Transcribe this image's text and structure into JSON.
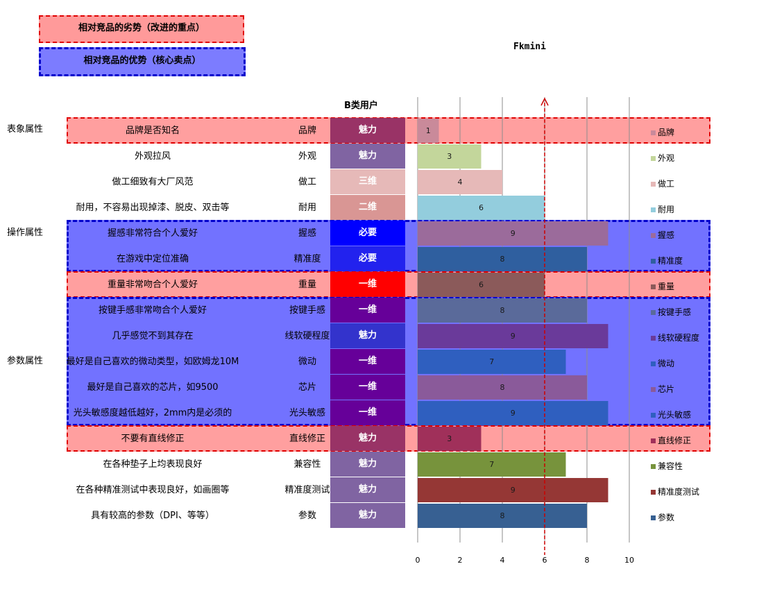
{
  "legend_boxes": {
    "weak": "相对竞品的劣势（改进的重点）",
    "strong": "相对竞品的优势（核心卖点）"
  },
  "user_group_header": "B类用户",
  "group_labels": {
    "appearance": "表象属性",
    "operation": "操作属性",
    "parameter": "参数属性"
  },
  "chart_data": {
    "type": "bar",
    "orientation": "horizontal",
    "title": "Fkmini",
    "xlim": [
      0,
      10
    ],
    "xticks": [
      0,
      2,
      4,
      6,
      8,
      10
    ],
    "reference_line_value": 6,
    "grid": true,
    "legend_position": "right",
    "categories": [
      "品牌",
      "外观",
      "做工",
      "耐用",
      "握感",
      "精准度",
      "重量",
      "按键手感",
      "线软硬程度",
      "微动",
      "芯片",
      "光头敏感",
      "直线修正",
      "兼容性",
      "精准度测试",
      "参数"
    ],
    "descriptions": [
      "品牌是否知名",
      "外观拉风",
      "做工细致有大厂风范",
      "耐用，不容易出现掉漆、脱皮、双击等",
      "握感非常符合个人爱好",
      "在游戏中定位准确",
      "重量非常吻合个人爱好",
      "按键手感非常吻合个人爱好",
      "几乎感觉不到其存在",
      "最好是自己喜欢的微动类型，如欧姆龙10M",
      "最好是自己喜欢的芯片，如9500",
      "光头敏感度越低越好，2mm内是必须的",
      "不要有直线修正",
      "在各种垫子上均表现良好",
      "在各种精准测试中表现良好，如画圈等",
      "具有较高的参数（DPI、等等）"
    ],
    "kano": [
      "魅力",
      "魅力",
      "三维",
      "二维",
      "必要",
      "必要",
      "一维",
      "一维",
      "魅力",
      "一维",
      "一维",
      "一维",
      "魅力",
      "魅力",
      "魅力",
      "魅力"
    ],
    "values": [
      1,
      3,
      4,
      6,
      9,
      8,
      6,
      8,
      9,
      7,
      8,
      9,
      3,
      7,
      9,
      8
    ],
    "colors": [
      "#c98a9a",
      "#c3d69b",
      "#e6b9b8",
      "#93cddd",
      "#9b6b9b",
      "#2f5f9f",
      "#8b5a5a",
      "#5a6a9a",
      "#6a3a9a",
      "#2f5fbf",
      "#8a5a9a",
      "#2f5fbf",
      "#a0305a",
      "#77933c",
      "#953735",
      "#376092"
    ],
    "kano_colors": [
      "#993366",
      "#8064a2",
      "#e6b9b8",
      "#d99694",
      "#0000ff",
      "#2222ee",
      "#ff0000",
      "#660099",
      "#3333cc",
      "#660099",
      "#660099",
      "#660099",
      "#993366",
      "#8064a2",
      "#8064a2",
      "#8064a2"
    ],
    "highlights": [
      {
        "type": "weak",
        "rows": [
          0
        ]
      },
      {
        "type": "strong",
        "rows": [
          4,
          5
        ]
      },
      {
        "type": "weak",
        "rows": [
          6
        ]
      },
      {
        "type": "strong",
        "rows": [
          7,
          8,
          9,
          10,
          11
        ]
      },
      {
        "type": "weak",
        "rows": [
          12
        ]
      }
    ]
  }
}
